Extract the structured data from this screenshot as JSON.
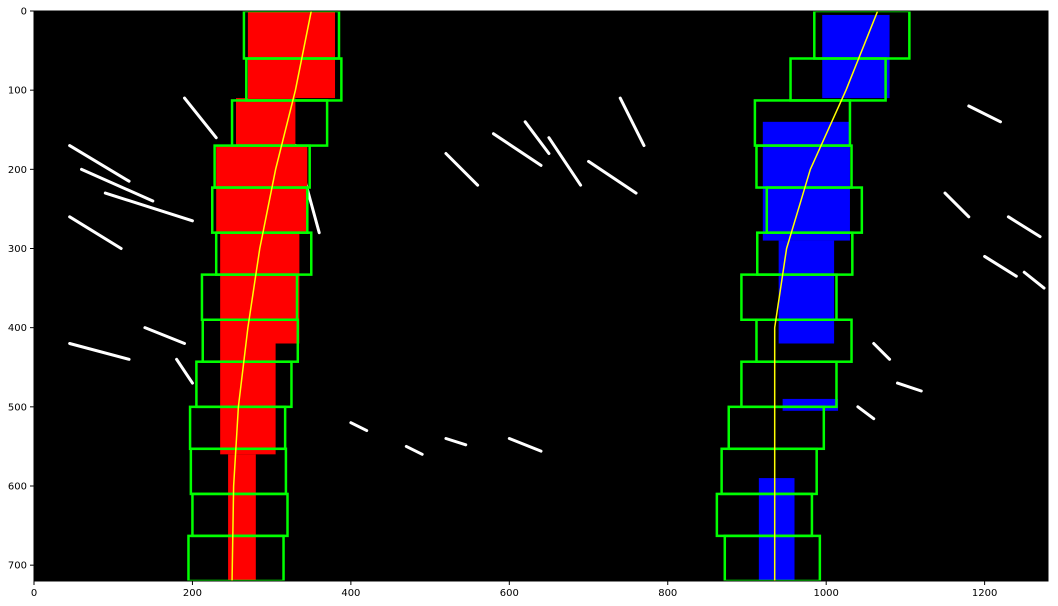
{
  "chart_data": {
    "type": "image",
    "xlim": [
      0,
      1280
    ],
    "ylim": [
      720,
      0
    ],
    "x_ticks": [
      0,
      200,
      400,
      600,
      800,
      1000,
      1200
    ],
    "y_ticks": [
      0,
      100,
      200,
      300,
      400,
      500,
      600,
      700
    ],
    "background_color": "#000000",
    "colors": {
      "window": "#00ff00",
      "left_lane_pixels": "#ff0000",
      "right_lane_pixels": "#0000ff",
      "fit_line": "#ffff00",
      "noise": "#ffffff"
    },
    "left_windows": [
      {
        "x": [
          265,
          385
        ],
        "y": [
          0,
          60
        ]
      },
      {
        "x": [
          268,
          388
        ],
        "y": [
          60,
          113
        ]
      },
      {
        "x": [
          250,
          370
        ],
        "y": [
          113,
          170
        ]
      },
      {
        "x": [
          228,
          348
        ],
        "y": [
          170,
          223
        ]
      },
      {
        "x": [
          225,
          345
        ],
        "y": [
          223,
          280
        ]
      },
      {
        "x": [
          230,
          350
        ],
        "y": [
          280,
          333
        ]
      },
      {
        "x": [
          212,
          332
        ],
        "y": [
          333,
          390
        ]
      },
      {
        "x": [
          213,
          333
        ],
        "y": [
          390,
          443
        ]
      },
      {
        "x": [
          205,
          325
        ],
        "y": [
          443,
          500
        ]
      },
      {
        "x": [
          197,
          317
        ],
        "y": [
          500,
          553
        ]
      },
      {
        "x": [
          198,
          318
        ],
        "y": [
          553,
          610
        ]
      },
      {
        "x": [
          200,
          320
        ],
        "y": [
          610,
          663
        ]
      },
      {
        "x": [
          195,
          315
        ],
        "y": [
          663,
          720
        ]
      }
    ],
    "right_windows": [
      {
        "x": [
          985,
          1105
        ],
        "y": [
          0,
          60
        ]
      },
      {
        "x": [
          955,
          1075
        ],
        "y": [
          60,
          113
        ]
      },
      {
        "x": [
          910,
          1030
        ],
        "y": [
          113,
          170
        ]
      },
      {
        "x": [
          912,
          1032
        ],
        "y": [
          170,
          223
        ]
      },
      {
        "x": [
          925,
          1045
        ],
        "y": [
          223,
          280
        ]
      },
      {
        "x": [
          913,
          1033
        ],
        "y": [
          280,
          333
        ]
      },
      {
        "x": [
          893,
          1013
        ],
        "y": [
          333,
          390
        ]
      },
      {
        "x": [
          912,
          1032
        ],
        "y": [
          390,
          443
        ]
      },
      {
        "x": [
          893,
          1013
        ],
        "y": [
          443,
          500
        ]
      },
      {
        "x": [
          877,
          997
        ],
        "y": [
          500,
          553
        ]
      },
      {
        "x": [
          868,
          988
        ],
        "y": [
          553,
          610
        ]
      },
      {
        "x": [
          862,
          982
        ],
        "y": [
          610,
          663
        ]
      },
      {
        "x": [
          872,
          992
        ],
        "y": [
          663,
          720
        ]
      }
    ],
    "left_fit": {
      "x": [
        350,
        330,
        305,
        285,
        270,
        258,
        252,
        250
      ],
      "y": [
        0,
        100,
        200,
        300,
        400,
        500,
        600,
        720
      ]
    },
    "right_fit": {
      "x": [
        1065,
        1025,
        980,
        950,
        935,
        935,
        935
      ],
      "y": [
        0,
        100,
        200,
        300,
        400,
        500,
        720
      ]
    },
    "left_lane_blobs": [
      {
        "x": [
          270,
          380
        ],
        "y": [
          0,
          110
        ]
      },
      {
        "x": [
          255,
          330
        ],
        "y": [
          110,
          175
        ]
      },
      {
        "x": [
          230,
          345
        ],
        "y": [
          170,
          280
        ]
      },
      {
        "x": [
          235,
          335
        ],
        "y": [
          280,
          420
        ]
      },
      {
        "x": [
          235,
          305
        ],
        "y": [
          420,
          560
        ]
      },
      {
        "x": [
          245,
          280
        ],
        "y": [
          560,
          720
        ]
      }
    ],
    "right_lane_blobs": [
      {
        "x": [
          995,
          1080
        ],
        "y": [
          5,
          110
        ]
      },
      {
        "x": [
          920,
          1030
        ],
        "y": [
          140,
          290
        ]
      },
      {
        "x": [
          940,
          1010
        ],
        "y": [
          290,
          420
        ]
      },
      {
        "x": [
          945,
          1015
        ],
        "y": [
          490,
          505
        ]
      },
      {
        "x": [
          915,
          960
        ],
        "y": [
          590,
          720
        ]
      }
    ]
  }
}
